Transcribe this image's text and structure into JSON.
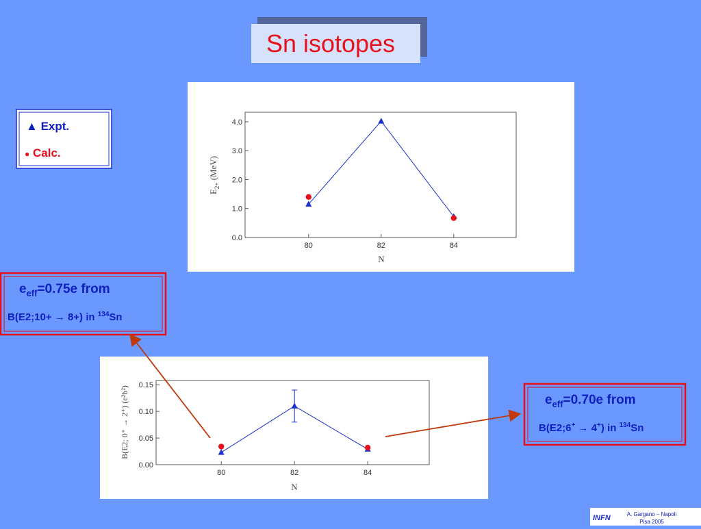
{
  "title": "Sn isotopes",
  "legend": {
    "expt_symbol": "▲",
    "calc_symbol": "●"
  },
  "box_left": {
    "e": "e",
    "eff": "eff",
    "rest": "=0.75e from",
    "line2": "B(E2;10+ → 8+)  in ",
    "mass": "134",
    "element": "Sn"
  },
  "box_right": {
    "e": "e",
    "eff": "eff",
    "rest": "=0.70e from",
    "b1": "B(E2;6",
    "p1": "+",
    "b2": " → 4",
    "p2": "+",
    "b3": ")  in ",
    "mass": "134",
    "element": "Sn"
  },
  "footer": {
    "logo": "INFN",
    "line1": "A. Gargano – Napoli",
    "line2": "Pisa  2005"
  },
  "chart_data": [
    {
      "type": "scatter",
      "ylabel": "E",
      "ylabel_sub": "2+",
      "ylabel_unit": " (MeV)",
      "xlabel": "N",
      "x": [
        80,
        82,
        84
      ],
      "xlim": [
        78.25,
        85.72
      ],
      "xticks": [
        80,
        82,
        84
      ],
      "ylim": [
        0,
        4.33
      ],
      "yticks": [
        {
          "value": 0,
          "label": "0.0"
        },
        {
          "value": 1,
          "label": "1.0"
        },
        {
          "value": 2,
          "label": "2.0"
        },
        {
          "value": 3,
          "label": "3.0"
        },
        {
          "value": 4,
          "label": "4.0"
        }
      ],
      "series": [
        {
          "name": "Expt.",
          "color": "#1a2fd0",
          "marker": "triangle",
          "line": true,
          "values": [
            1.15,
            4.02,
            0.72
          ]
        },
        {
          "name": "Calc.",
          "color": "#e8101a",
          "marker": "circle",
          "line": false,
          "values": [
            1.4,
            null,
            0.67
          ]
        }
      ]
    },
    {
      "type": "scatter",
      "ylabel": "B(E2; 0⁺ → 2⁺) (e²b²)",
      "xlabel": "N",
      "x": [
        80,
        82,
        84
      ],
      "xlim": [
        78.22,
        85.68
      ],
      "xticks": [
        80,
        82,
        84
      ],
      "ylim": [
        0,
        0.158
      ],
      "yticks": [
        {
          "value": 0,
          "label": "0.00"
        },
        {
          "value": 0.05,
          "label": "0.05"
        },
        {
          "value": 0.1,
          "label": "0.10"
        },
        {
          "value": 0.15,
          "label": "0.15"
        }
      ],
      "series": [
        {
          "color": "#1a2fd0",
          "marker": "triangle",
          "line": true,
          "values": [
            0.023,
            0.11,
            0.029
          ],
          "errors": [
            null,
            0.03,
            null
          ]
        },
        {
          "color": "#e8101a",
          "marker": "circle",
          "line": false,
          "values": [
            0.034,
            null,
            0.032
          ]
        }
      ]
    }
  ]
}
